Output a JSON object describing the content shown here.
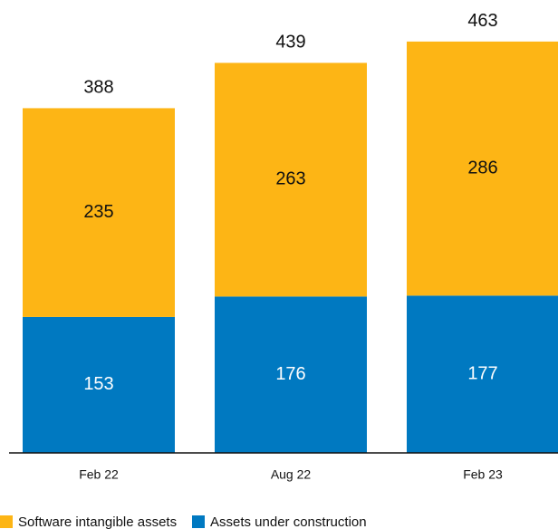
{
  "chart_data": {
    "type": "stacked_bar",
    "categories": [
      "Feb 22",
      "Aug 22",
      "Feb 23"
    ],
    "series": [
      {
        "name": "Assets under construction",
        "color": "#0079c1",
        "values": [
          153,
          176,
          177
        ]
      },
      {
        "name": "Software intangible assets",
        "color": "#fdb515",
        "values": [
          235,
          263,
          286
        ]
      }
    ],
    "totals": [
      388,
      439,
      463
    ],
    "ylim": [
      0,
      470
    ]
  }
}
